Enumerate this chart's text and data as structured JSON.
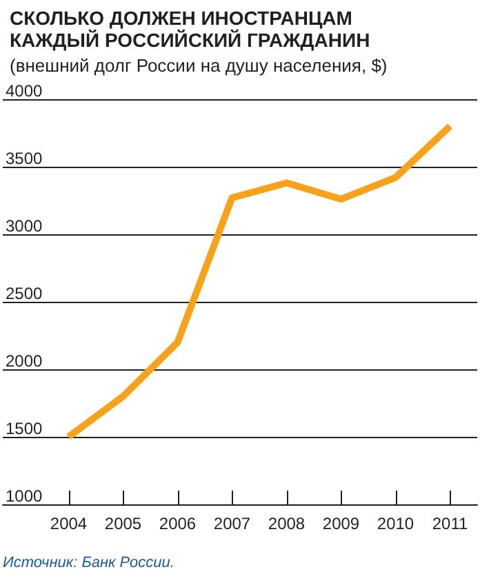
{
  "chart_data": {
    "type": "line",
    "title": "СКОЛЬКО ДОЛЖЕН ИНОСТРАНЦАМ\nКАЖДЫЙ РОССИЙСКИЙ ГРАЖДАНИН",
    "subtitle": "(внешний долг России на душу населения, $)",
    "categories": [
      "2004",
      "2005",
      "2006",
      "2007",
      "2008",
      "2009",
      "2010",
      "2011"
    ],
    "series": [
      {
        "color": "#f7a21b",
        "values": [
          1500,
          1800,
          2200,
          3270,
          3380,
          3260,
          3420,
          3800
        ]
      }
    ],
    "ylim": [
      1000,
      4000
    ],
    "yticks": [
      1000,
      1500,
      2000,
      2500,
      3000,
      3500,
      4000
    ],
    "grid": "y",
    "marker": "none",
    "line_style": "solid",
    "annotations": [
      "Источник: Банк России."
    ]
  }
}
